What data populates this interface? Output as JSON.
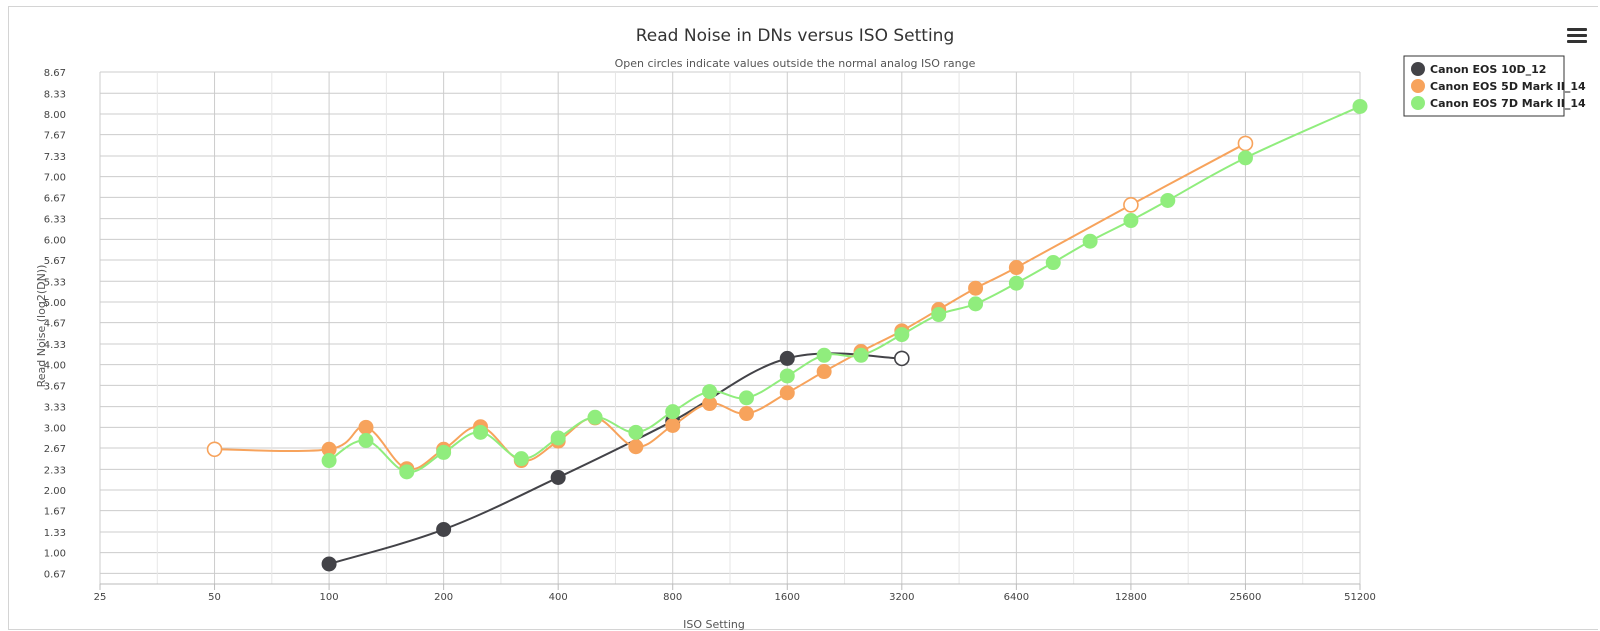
{
  "chart_data": {
    "type": "line",
    "title": "Read Noise in DNs versus ISO Setting",
    "subtitle": "Open circles indicate values outside the normal analog ISO range",
    "xlabel": "ISO Setting",
    "ylabel": "Read Noise (log2(DN))",
    "x_scale": "log2",
    "x_ticks": [
      "25",
      "50",
      "100",
      "200",
      "400",
      "800",
      "1600",
      "3200",
      "6400",
      "12800",
      "25600",
      "51200"
    ],
    "y_ticks": [
      "0.67",
      "1.00",
      "1.33",
      "1.67",
      "2.00",
      "2.33",
      "2.67",
      "3.00",
      "3.33",
      "3.67",
      "4.00",
      "4.33",
      "4.67",
      "5.00",
      "5.33",
      "5.67",
      "6.00",
      "6.33",
      "6.67",
      "7.00",
      "7.33",
      "7.67",
      "8.00",
      "8.33",
      "8.67"
    ],
    "xlim": [
      25,
      51200
    ],
    "ylim": [
      0.5,
      8.67
    ],
    "grid": true,
    "legend": "top-right",
    "series": [
      {
        "name": "Canon EOS 10D_12",
        "color": "#434348",
        "points": [
          {
            "x": 100,
            "y": 0.82,
            "open": false
          },
          {
            "x": 200,
            "y": 1.37,
            "open": false
          },
          {
            "x": 400,
            "y": 2.2,
            "open": false
          },
          {
            "x": 800,
            "y": 3.1,
            "open": false
          },
          {
            "x": 1600,
            "y": 4.1,
            "open": false
          },
          {
            "x": 3200,
            "y": 4.1,
            "open": true
          }
        ]
      },
      {
        "name": "Canon EOS 5D Mark II_14",
        "color": "#f7a35c",
        "points": [
          {
            "x": 50,
            "y": 2.65,
            "open": true
          },
          {
            "x": 100,
            "y": 2.65,
            "open": false
          },
          {
            "x": 125,
            "y": 3.0,
            "open": false
          },
          {
            "x": 160,
            "y": 2.34,
            "open": false
          },
          {
            "x": 200,
            "y": 2.65,
            "open": false
          },
          {
            "x": 250,
            "y": 3.01,
            "open": false
          },
          {
            "x": 320,
            "y": 2.47,
            "open": false
          },
          {
            "x": 400,
            "y": 2.78,
            "open": false
          },
          {
            "x": 500,
            "y": 3.15,
            "open": false
          },
          {
            "x": 640,
            "y": 2.69,
            "open": false
          },
          {
            "x": 800,
            "y": 3.03,
            "open": false
          },
          {
            "x": 1000,
            "y": 3.38,
            "open": false
          },
          {
            "x": 1250,
            "y": 3.22,
            "open": false
          },
          {
            "x": 1600,
            "y": 3.55,
            "open": false
          },
          {
            "x": 2000,
            "y": 3.89,
            "open": false
          },
          {
            "x": 2500,
            "y": 4.21,
            "open": false
          },
          {
            "x": 3200,
            "y": 4.54,
            "open": false
          },
          {
            "x": 4000,
            "y": 4.88,
            "open": false
          },
          {
            "x": 5000,
            "y": 5.22,
            "open": false
          },
          {
            "x": 6400,
            "y": 5.55,
            "open": false
          },
          {
            "x": 12800,
            "y": 6.55,
            "open": true
          },
          {
            "x": 25600,
            "y": 7.53,
            "open": true
          }
        ]
      },
      {
        "name": "Canon EOS 7D Mark II_14",
        "color": "#90ed7d",
        "points": [
          {
            "x": 100,
            "y": 2.47,
            "open": false
          },
          {
            "x": 125,
            "y": 2.79,
            "open": false
          },
          {
            "x": 160,
            "y": 2.29,
            "open": false
          },
          {
            "x": 200,
            "y": 2.6,
            "open": false
          },
          {
            "x": 250,
            "y": 2.92,
            "open": false
          },
          {
            "x": 320,
            "y": 2.5,
            "open": false
          },
          {
            "x": 400,
            "y": 2.83,
            "open": false
          },
          {
            "x": 500,
            "y": 3.16,
            "open": false
          },
          {
            "x": 640,
            "y": 2.92,
            "open": false
          },
          {
            "x": 800,
            "y": 3.25,
            "open": false
          },
          {
            "x": 1000,
            "y": 3.57,
            "open": false
          },
          {
            "x": 1250,
            "y": 3.47,
            "open": false
          },
          {
            "x": 1600,
            "y": 3.82,
            "open": false
          },
          {
            "x": 2000,
            "y": 4.15,
            "open": false
          },
          {
            "x": 2500,
            "y": 4.15,
            "open": false
          },
          {
            "x": 3200,
            "y": 4.48,
            "open": false
          },
          {
            "x": 4000,
            "y": 4.8,
            "open": false
          },
          {
            "x": 5000,
            "y": 4.97,
            "open": false
          },
          {
            "x": 6400,
            "y": 5.3,
            "open": false
          },
          {
            "x": 8000,
            "y": 5.63,
            "open": false
          },
          {
            "x": 10000,
            "y": 5.97,
            "open": false
          },
          {
            "x": 12800,
            "y": 6.3,
            "open": false
          },
          {
            "x": 16000,
            "y": 6.62,
            "open": false
          },
          {
            "x": 25600,
            "y": 7.3,
            "open": false
          },
          {
            "x": 51200,
            "y": 8.12,
            "open": false
          }
        ]
      }
    ]
  }
}
